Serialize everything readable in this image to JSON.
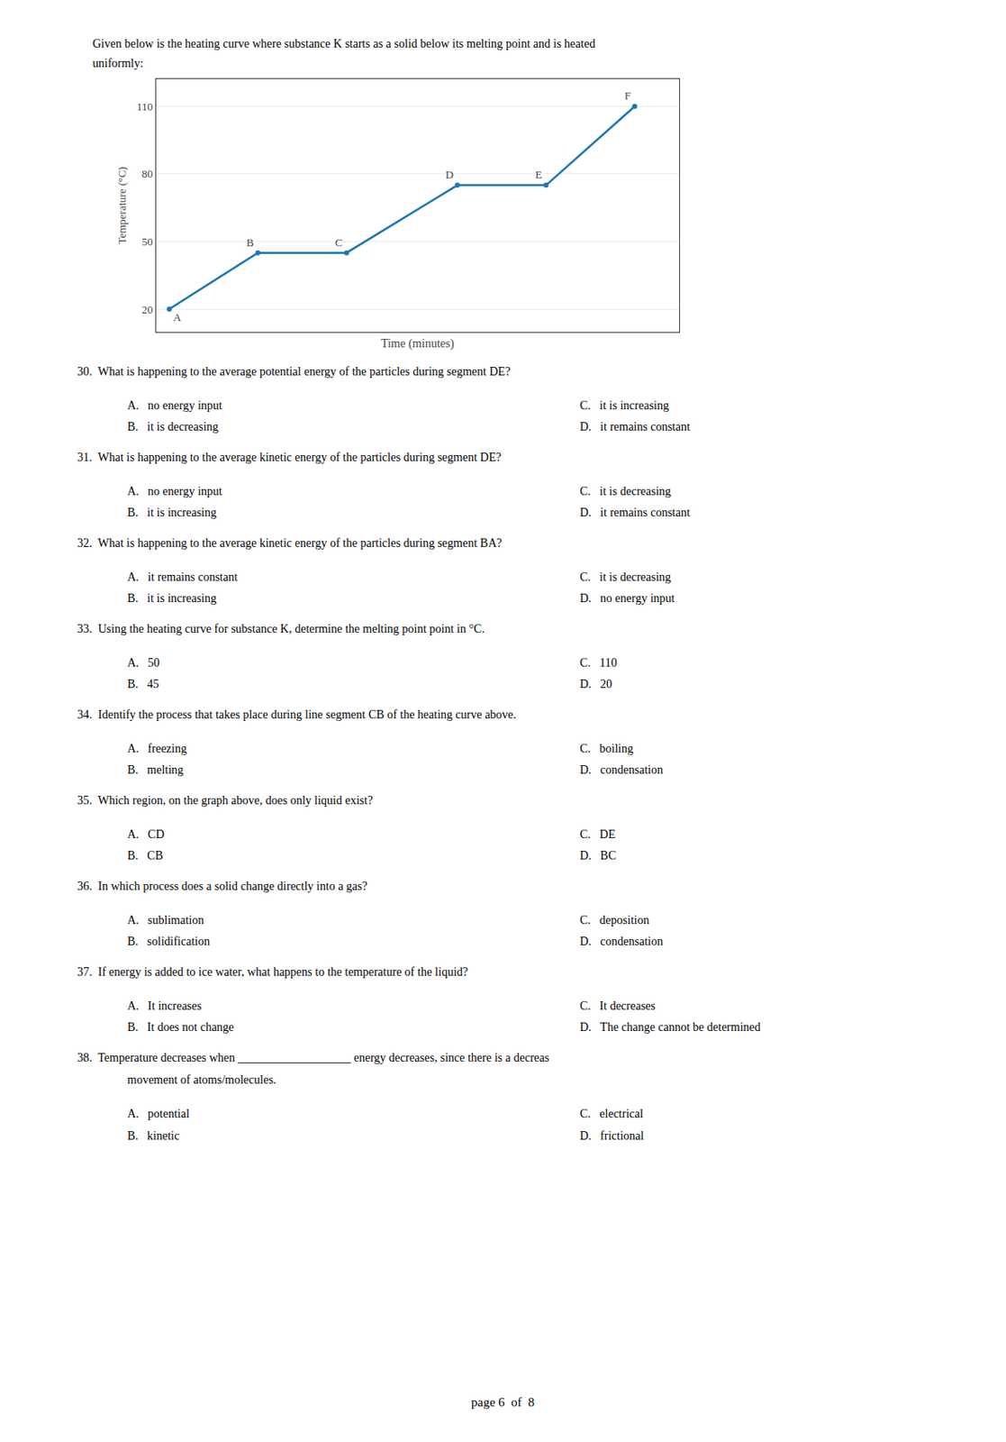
{
  "chart_data": {
    "type": "line",
    "subtitle": [
      "Given below is the heating curve where substance K starts as a solid below its melting point and is heated",
      "uniformly:"
    ],
    "x_label": "Time (minutes)",
    "y_label": "Temperature (°C)",
    "x": [
      0,
      2,
      4,
      6.5,
      8.5,
      10.5
    ],
    "values": [
      20,
      45,
      45,
      75,
      75,
      110
    ],
    "labels": [
      "A",
      "B",
      "C",
      "D",
      "E",
      "F"
    ],
    "xlim": [
      -0.3,
      11.5
    ],
    "ylim": [
      10,
      122
    ],
    "yticks": [
      20,
      50,
      80,
      110
    ],
    "grid": true,
    "tick_labels": "y",
    "annotations": [
      {
        "text": [
          "30.  What is happening to the average potential energy of the particles during segment DE?"
        ],
        "options": [
          [
            "A.   no energy input",
            "C.   it is increasing"
          ],
          [
            "B.   it is decreasing",
            "D.   it remains constant"
          ]
        ]
      },
      {
        "text": [
          "31.  What is happening to the average kinetic energy of the particles during segment DE?"
        ],
        "options": [
          [
            "A.   no energy input",
            "C.   it is decreasing"
          ],
          [
            "B.   it is increasing",
            "D.   it remains constant"
          ]
        ]
      },
      {
        "text": [
          "32.  What is happening to the average kinetic energy of the particles during segment BA?"
        ],
        "options": [
          [
            "A.   it remains constant",
            "C.   it is decreasing"
          ],
          [
            "B.   it is increasing",
            "D.   no energy input"
          ]
        ]
      },
      {
        "text": [
          "33.  Using the heating curve for substance K, determine the melting point point in °C."
        ],
        "options": [
          [
            "A.   50",
            "C.   110"
          ],
          [
            "B.   45",
            "D.   20"
          ]
        ]
      },
      {
        "text": [
          "34.  Identify the process that takes place during line segment CB of the heating curve above."
        ],
        "options": [
          [
            "A.   freezing",
            "C.   boiling"
          ],
          [
            "B.   melting",
            "D.   condensation"
          ]
        ]
      },
      {
        "text": [
          "35.  Which region, on the graph above, does only liquid exist?"
        ],
        "options": [
          [
            "A.   CD",
            "C.   DE"
          ],
          [
            "B.   CB",
            "D.   BC"
          ]
        ]
      },
      {
        "text": [
          "36.  In which process does a solid change directly into a gas?"
        ],
        "options": [
          [
            "A.   sublimation",
            "C.   deposition"
          ],
          [
            "B.   solidification",
            "D.   condensation"
          ]
        ]
      },
      {
        "text": [
          "37.  If energy is added to ice water, what happens to the temperature of the liquid?"
        ],
        "options": [
          [
            "A.   It increases",
            "C.   It decreases"
          ],
          [
            "B.   It does not change",
            "D.   The change cannot be determined"
          ]
        ]
      },
      {
        "text": [
          "38.  Temperature decreases when ___________________ energy decreases, since there is a decreas",
          "movement of atoms/molecules."
        ],
        "options": [
          [
            "A.   potential",
            "C.   electrical"
          ],
          [
            "B.   kinetic",
            "D.   frictional"
          ]
        ]
      },
      {
        "text": [
          "page 6  of  8"
        ]
      }
    ]
  }
}
